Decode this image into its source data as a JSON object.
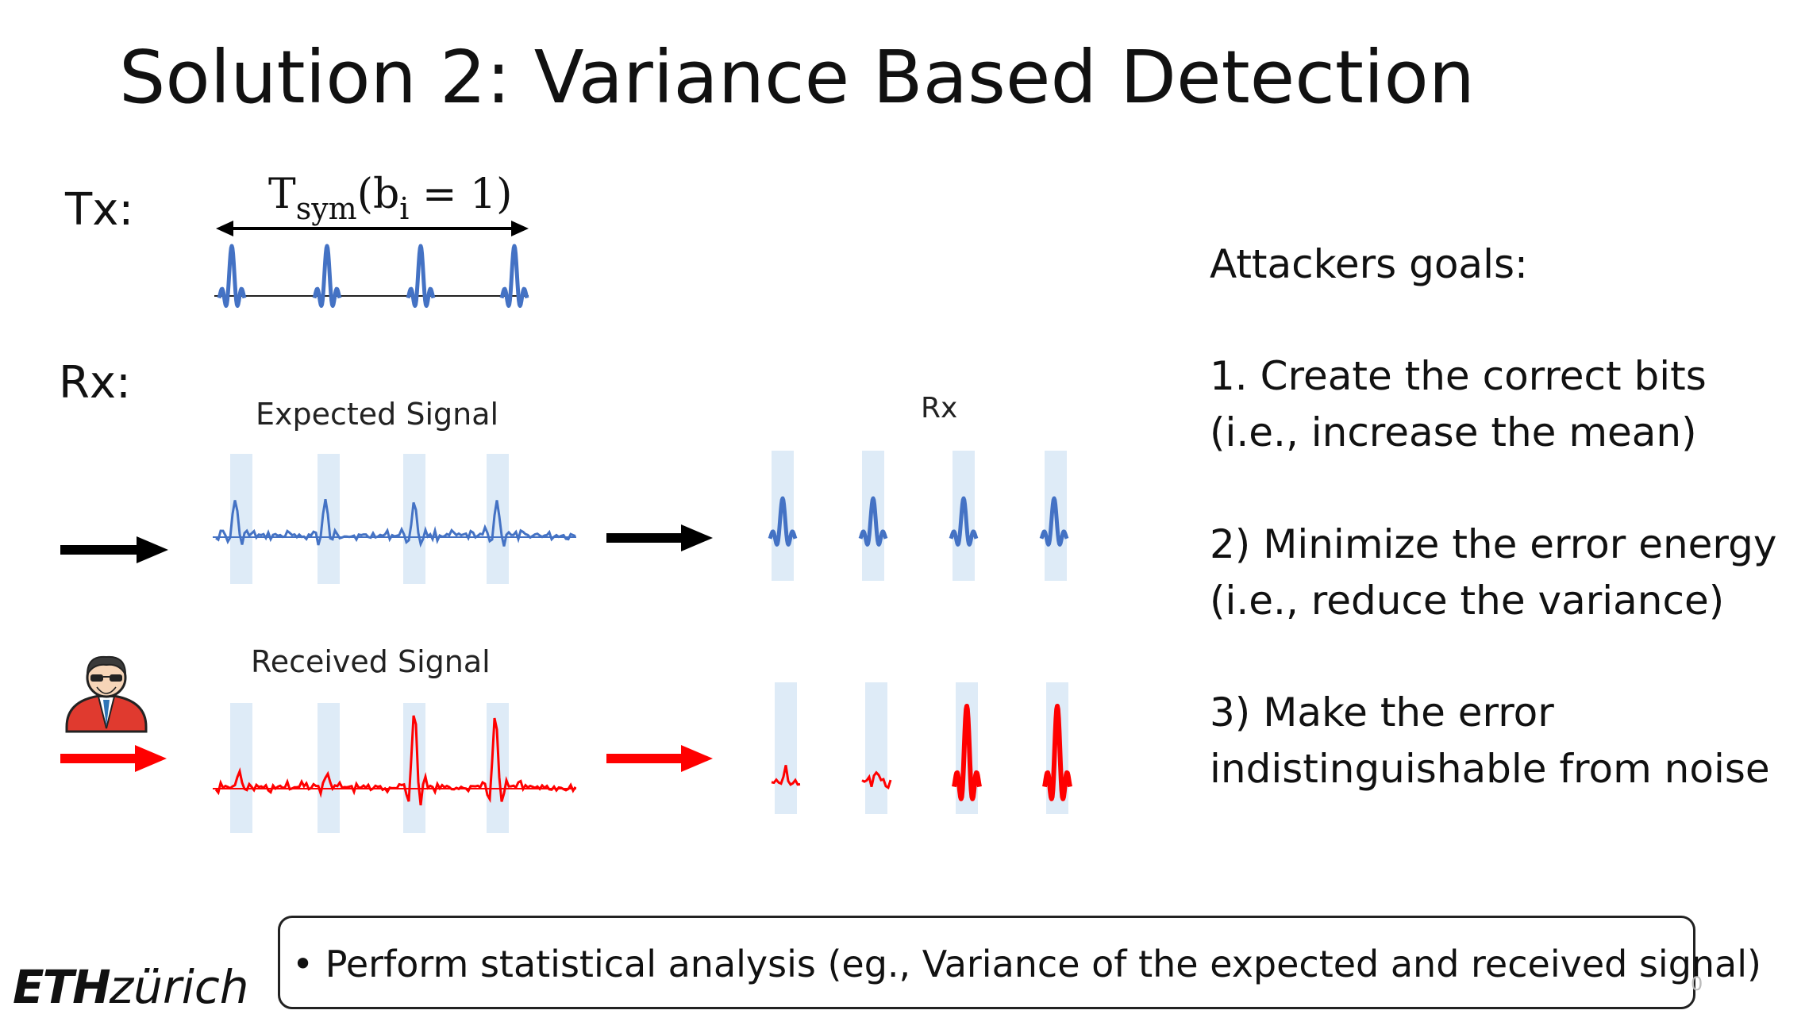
{
  "title": "Solution 2: Variance Based Detection",
  "tx_label": "Tx:",
  "rx_label": "Rx:",
  "formula": {
    "t": "T",
    "sub": "sym",
    "args": "(b",
    "sub_i": "i",
    "rest": " = 1)"
  },
  "captions": {
    "expected": "Expected Signal",
    "received": "Received Signal",
    "rx": "Rx"
  },
  "goals": {
    "heading": "Attackers goals:",
    "items": [
      {
        "line1": "1. Create the correct bits",
        "line2": "(i.e., increase the mean)"
      },
      {
        "line1": "2) Minimize the error energy",
        "line2": "(i.e., reduce the variance)"
      },
      {
        "line1": "3) Make the error",
        "line2": "indistinguishable from noise"
      }
    ]
  },
  "note": "• Perform statistical analysis (eg., Variance of the expected and received signal)",
  "logo": {
    "bold": "ETH",
    "italic": "zürich"
  },
  "page_number": "0",
  "colors": {
    "tx": "#4472c4",
    "expected": "#4472c4",
    "received": "#ff0000",
    "window": "#deebf7",
    "arrow_normal": "#000000",
    "arrow_attack": "#ff0000"
  },
  "icons": {
    "attacker": "attacker-avatar-icon"
  }
}
